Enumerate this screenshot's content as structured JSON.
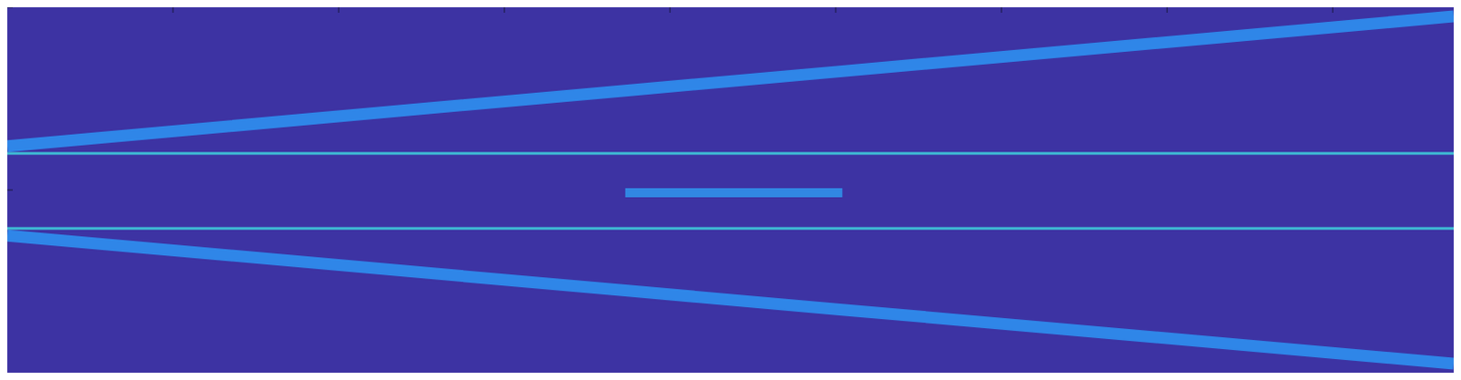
{
  "chart_data": {
    "type": "line",
    "x": [
      0,
      3.73,
      5.04,
      8.73
    ],
    "xlim": [
      0,
      8.73
    ],
    "xticks": [
      0,
      1,
      2,
      3,
      4,
      5,
      6,
      7,
      8
    ],
    "ylim": [
      -1,
      1
    ],
    "yticks": [
      -1,
      0,
      1
    ],
    "tick_labels": false,
    "grid": false,
    "series": [
      {
        "color": "#2e8ff0",
        "values": [
          0.24,
          0.544,
          0.65,
          0.95
        ]
      },
      {
        "color": "#2e8ff0",
        "values": [
          -0.25,
          -0.55,
          -0.655,
          -0.95
        ]
      },
      {
        "color": "#3ec7d8",
        "values": [
          0.2,
          0.2,
          0.2,
          0.2
        ]
      },
      {
        "color": "#3ec7d8",
        "values": [
          -0.21,
          -0.21,
          -0.21,
          -0.21
        ]
      },
      {
        "color": "#3090ea",
        "values": [
          null,
          -0.015,
          -0.015,
          null
        ]
      }
    ]
  }
}
